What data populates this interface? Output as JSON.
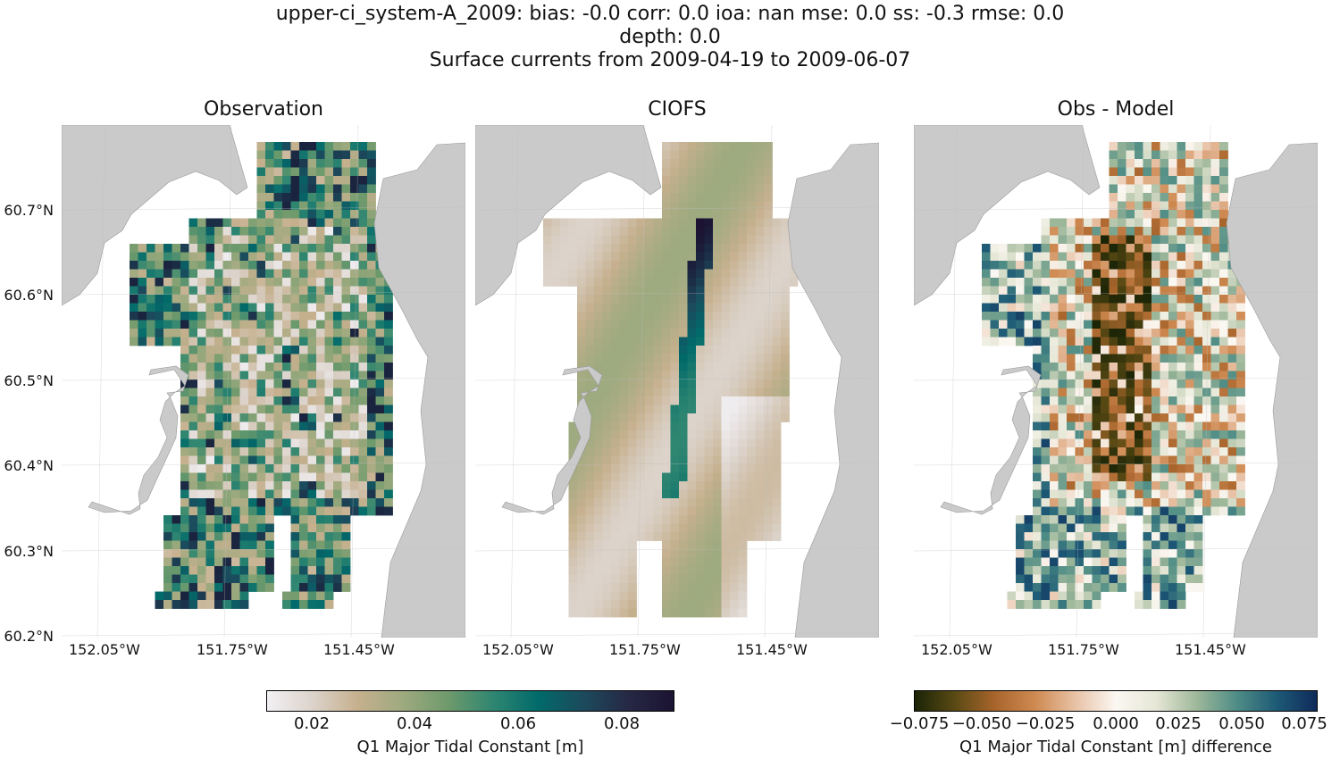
{
  "title": {
    "line1": "upper-ci_system-A_2009: bias: -0.0  corr: 0.0  ioa: nan  mse: 0.0  ss: -0.3  rmse: 0.0",
    "line2": "depth: 0.0",
    "line3": "Surface currents from 2009-04-19 to 2009-06-07"
  },
  "chart_data": [
    {
      "type": "heatmap",
      "title": "Observation",
      "xticks": [
        "152.05°W",
        "151.75°W",
        "151.45°W"
      ],
      "yticks": [
        "60.2°N",
        "60.3°N",
        "60.4°N",
        "60.5°N",
        "60.6°N",
        "60.7°N"
      ],
      "colorbar_label": "Q1 Major Tidal Constant [m]",
      "colorbar_range": [
        0.01,
        0.09
      ],
      "colorbar_ticks": [
        "0.02",
        "0.04",
        "0.06",
        "0.08"
      ]
    },
    {
      "type": "heatmap",
      "title": "CIOFS",
      "xticks": [
        "152.05°W",
        "151.75°W",
        "151.45°W"
      ],
      "colorbar_label": "Q1 Major Tidal Constant [m]",
      "colorbar_range": [
        0.01,
        0.09
      ]
    },
    {
      "type": "heatmap",
      "title": "Obs - Model",
      "xticks": [
        "152.05°W",
        "151.75°W",
        "151.45°W"
      ],
      "colorbar_label": "Q1 Major Tidal Constant [m] difference",
      "colorbar_range": [
        -0.08,
        0.08
      ],
      "colorbar_ticks": [
        "−0.075",
        "−0.050",
        "−0.025",
        "0.000",
        "0.025",
        "0.050",
        "0.075"
      ]
    }
  ]
}
